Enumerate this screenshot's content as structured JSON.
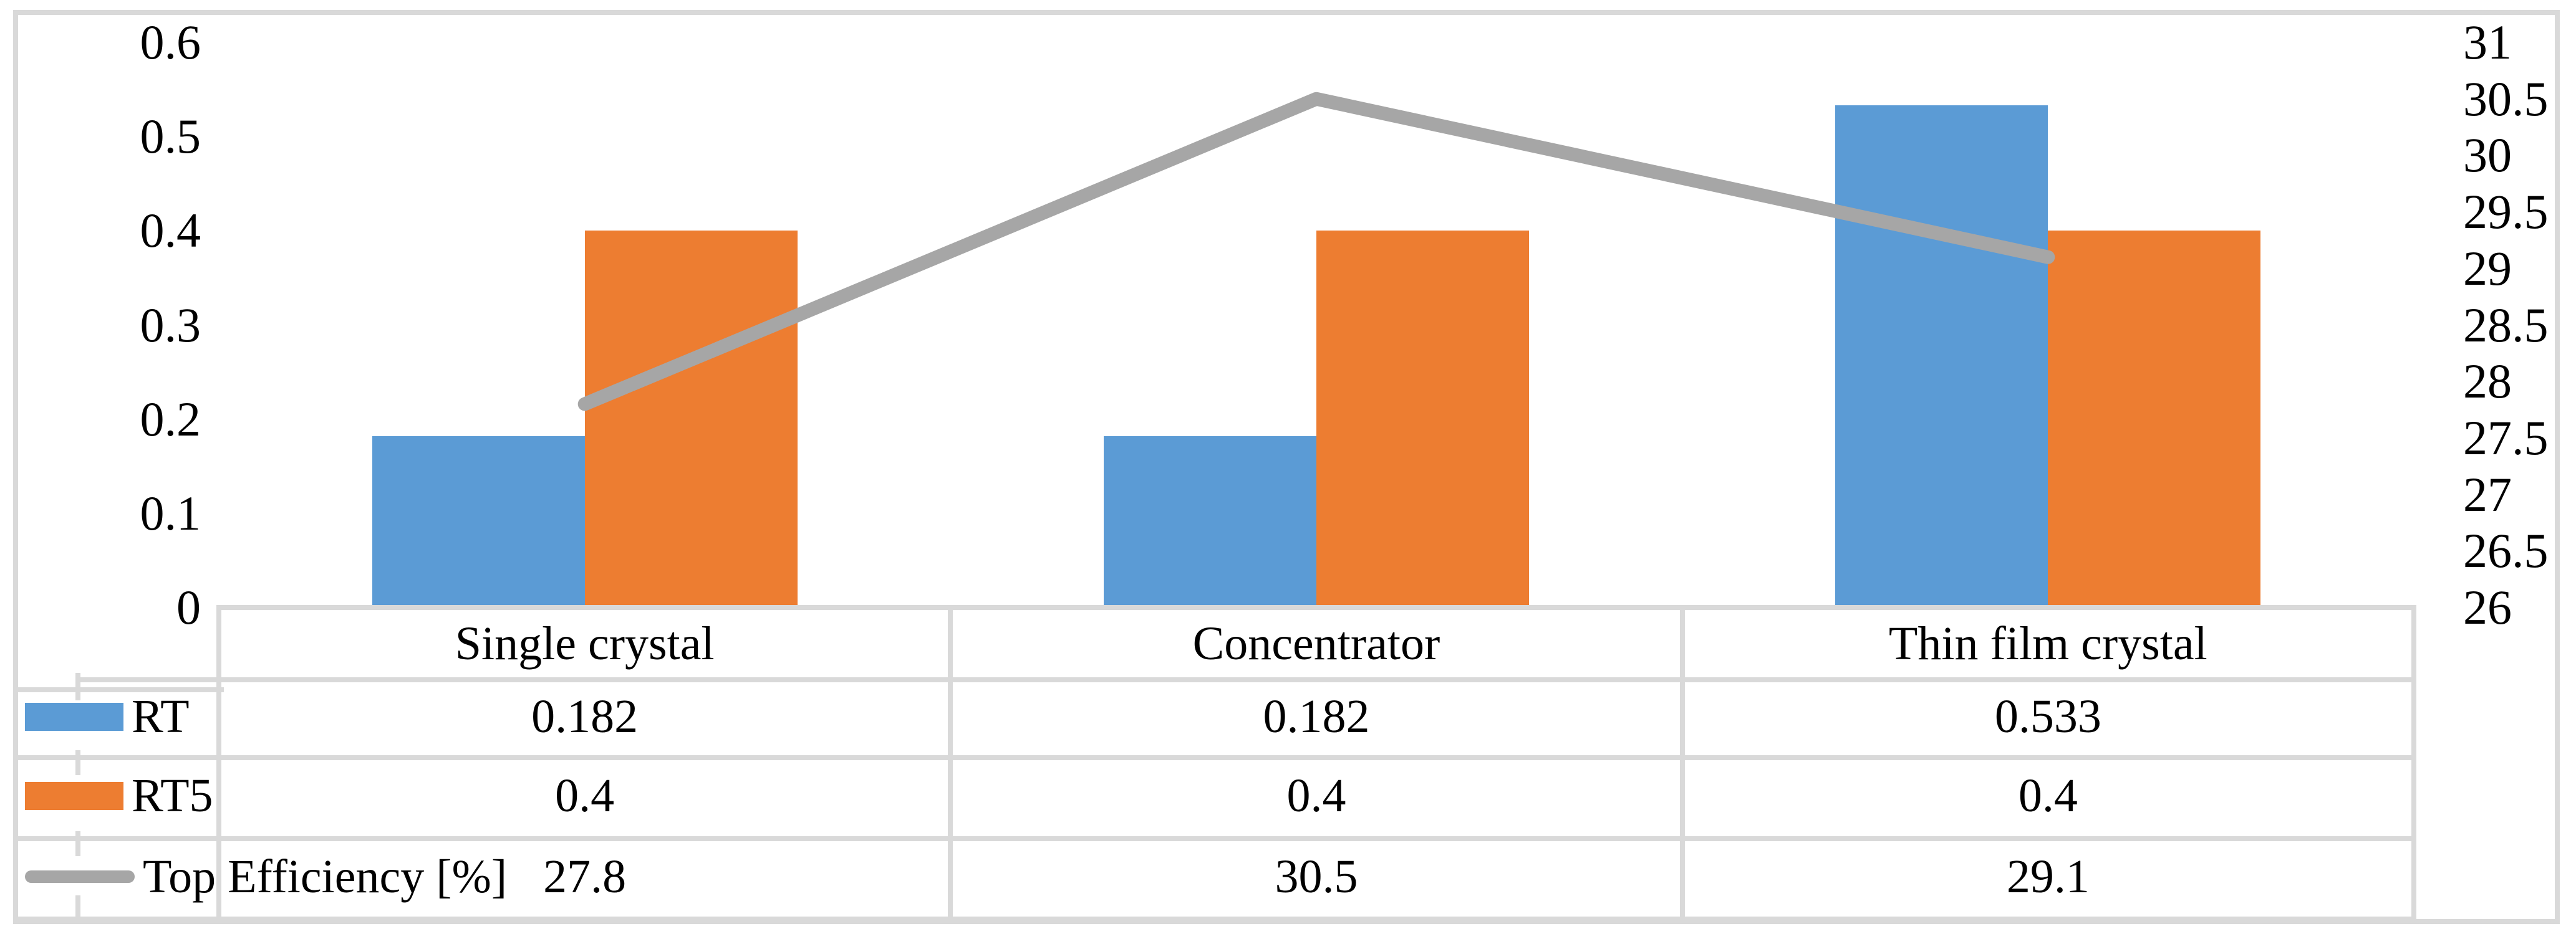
{
  "chart_data": {
    "type": "combo-bar-line",
    "categories": [
      "Single crystal",
      "Concentrator",
      "Thin film crystal"
    ],
    "series": [
      {
        "name": "RT",
        "type": "bar",
        "axis": "left",
        "color": "#5B9BD5",
        "values": [
          0.182,
          0.182,
          0.533
        ],
        "labels": [
          "0.182",
          "0.182",
          "0.533"
        ]
      },
      {
        "name": "RT5",
        "type": "bar",
        "axis": "left",
        "color": "#ED7D31",
        "values": [
          0.4,
          0.4,
          0.4
        ],
        "labels": [
          "0.4",
          "0.4",
          "0.4"
        ]
      },
      {
        "name": "Top Efficiency [%]",
        "type": "line",
        "axis": "right",
        "color": "#A6A6A6",
        "values": [
          27.8,
          30.5,
          29.1
        ],
        "labels": [
          "27.8",
          "30.5",
          "29.1"
        ]
      }
    ],
    "left_axis": {
      "min": 0,
      "max": 0.6,
      "step": 0.1,
      "tick_labels": [
        "0.6",
        "0.5",
        "0.4",
        "0.3",
        "0.2",
        "0.1",
        "0"
      ]
    },
    "right_axis": {
      "min": 26,
      "max": 31,
      "step": 0.5,
      "tick_labels": [
        "31",
        "30.5",
        "30",
        "29.5",
        "29",
        "28.5",
        "28",
        "27.5",
        "27",
        "26.5",
        "26"
      ]
    },
    "grid": false,
    "legend_position": "data-table-left"
  },
  "colors": {
    "bar_rt": "#5B9BD5",
    "bar_rt5": "#ED7D31",
    "line_top_efficiency": "#A6A6A6",
    "table_border": "#D9D9D9",
    "text": "#000000",
    "background": "#FFFFFF"
  }
}
